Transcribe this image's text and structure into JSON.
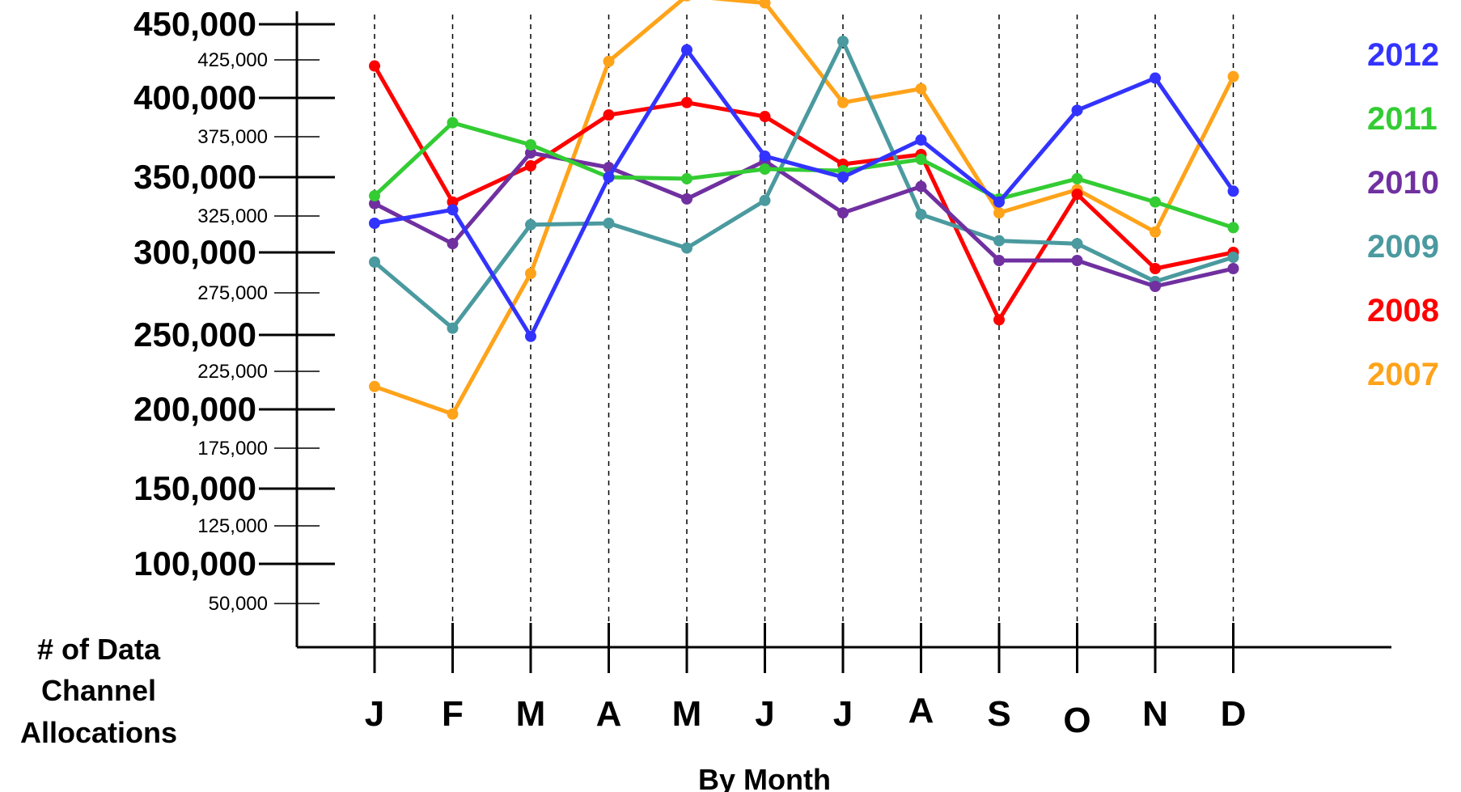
{
  "chart_data": {
    "type": "line",
    "ylabel": "# of Data Channel Allocations",
    "xlabel": "By Month",
    "categories": [
      "J",
      "F",
      "M",
      "A",
      "M",
      "J",
      "J",
      "A",
      "S",
      "O",
      "N",
      "D"
    ],
    "y_ticks": [
      {
        "value": 450000,
        "label": "450,000",
        "major": true
      },
      {
        "value": 425000,
        "label": "425,000",
        "major": false
      },
      {
        "value": 400000,
        "label": "400,000",
        "major": true
      },
      {
        "value": 375000,
        "label": "375,000",
        "major": false
      },
      {
        "value": 350000,
        "label": "350,000",
        "major": true
      },
      {
        "value": 325000,
        "label": "325,000",
        "major": false
      },
      {
        "value": 300000,
        "label": "300,000",
        "major": true
      },
      {
        "value": 275000,
        "label": "275,000",
        "major": false
      },
      {
        "value": 250000,
        "label": "250,000",
        "major": true
      },
      {
        "value": 225000,
        "label": "225,000",
        "major": false
      },
      {
        "value": 200000,
        "label": "200,000",
        "major": true
      },
      {
        "value": 175000,
        "label": "175,000",
        "major": false
      },
      {
        "value": 150000,
        "label": "150,000",
        "major": true
      },
      {
        "value": 125000,
        "label": "125,000",
        "major": false
      },
      {
        "value": 100000,
        "label": "100,000",
        "major": true
      },
      {
        "value": 50000,
        "label": "50,000",
        "major": false
      }
    ],
    "grid": "vertical dashed lines at each month",
    "legend_position": "right",
    "series": [
      {
        "name": "2012",
        "color": "#3333ff",
        "values": [
          320000,
          329000,
          249000,
          350000,
          432000,
          363000,
          350000,
          373000,
          334000,
          392000,
          413000,
          341000
        ]
      },
      {
        "name": "2011",
        "color": "#33cc33",
        "values": [
          338000,
          384000,
          370000,
          350000,
          349000,
          355000,
          354000,
          361000,
          336000,
          349000,
          334000,
          317000
        ]
      },
      {
        "name": "2010",
        "color": "#7030a0",
        "values": [
          333000,
          306000,
          365000,
          356000,
          336000,
          360000,
          327000,
          344000,
          295000,
          295000,
          279000,
          290000
        ]
      },
      {
        "name": "2009",
        "color": "#4a9a9f",
        "values": [
          294000,
          254000,
          319000,
          320000,
          303000,
          335000,
          438000,
          326000,
          308000,
          306000,
          282000,
          297000
        ]
      },
      {
        "name": "2008",
        "color": "#ff0000",
        "values": [
          421000,
          334000,
          357000,
          389000,
          397000,
          388000,
          358000,
          364000,
          259000,
          339000,
          290000,
          300000
        ]
      },
      {
        "name": "2007",
        "color": "#ffa31a",
        "values": [
          215000,
          197000,
          287000,
          424000,
          470000,
          465000,
          397000,
          406000,
          327000,
          342000,
          314000,
          414000
        ]
      }
    ]
  }
}
